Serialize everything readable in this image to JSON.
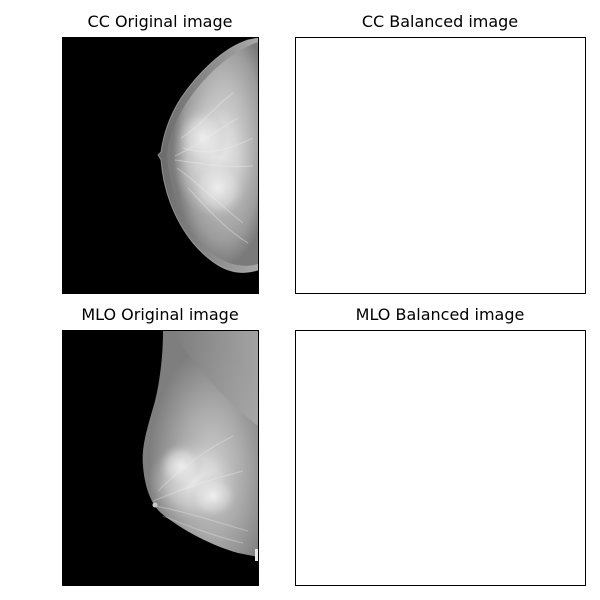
{
  "panels": {
    "cc_original": {
      "title": "CC Original image"
    },
    "cc_balanced": {
      "title": "CC Balanced image"
    },
    "mlo_original": {
      "title": "MLO Original image"
    },
    "mlo_balanced": {
      "title": "MLO Balanced image"
    }
  },
  "colors": {
    "background": "#000000",
    "tissue": "#9a9a9a",
    "dense": "#e6e6e6",
    "frame": "#000000"
  }
}
